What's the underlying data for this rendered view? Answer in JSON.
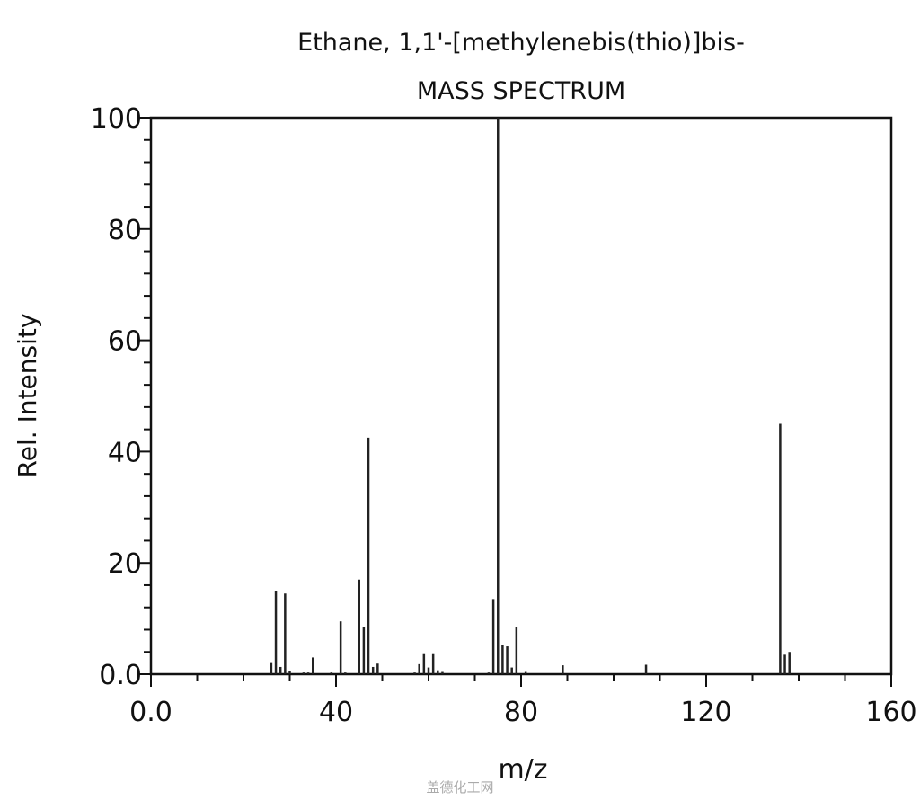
{
  "chart_data": {
    "type": "bar",
    "title": "Ethane, 1,1'-[methylenebis(thio)]bis-",
    "subtitle": "MASS SPECTRUM",
    "xlabel": "m/z",
    "ylabel": "Rel. Intensity",
    "xlim": [
      0,
      160
    ],
    "ylim": [
      0,
      100
    ],
    "xticks": [
      0,
      40,
      80,
      120,
      160
    ],
    "xtick_labels": [
      "0.0",
      "40",
      "80",
      "120",
      "160"
    ],
    "yticks": [
      0,
      20,
      40,
      60,
      80,
      100
    ],
    "ytick_labels": [
      "0.0",
      "20",
      "40",
      "60",
      "80",
      "100"
    ],
    "grid": false,
    "peaks": [
      {
        "mz": 26,
        "i": 2.0
      },
      {
        "mz": 27,
        "i": 15
      },
      {
        "mz": 28,
        "i": 1.3
      },
      {
        "mz": 29,
        "i": 14.5
      },
      {
        "mz": 30,
        "i": 0.5
      },
      {
        "mz": 33,
        "i": 0.3
      },
      {
        "mz": 34,
        "i": 0.3
      },
      {
        "mz": 35,
        "i": 3
      },
      {
        "mz": 39,
        "i": 0.3
      },
      {
        "mz": 41,
        "i": 9.5
      },
      {
        "mz": 42,
        "i": 0.3
      },
      {
        "mz": 45,
        "i": 17
      },
      {
        "mz": 46,
        "i": 8.5
      },
      {
        "mz": 47,
        "i": 42.5
      },
      {
        "mz": 48,
        "i": 1.3
      },
      {
        "mz": 49,
        "i": 1.9
      },
      {
        "mz": 57,
        "i": 0.3
      },
      {
        "mz": 58,
        "i": 1.8
      },
      {
        "mz": 59,
        "i": 3.6
      },
      {
        "mz": 60,
        "i": 1.2
      },
      {
        "mz": 61,
        "i": 3.6
      },
      {
        "mz": 62,
        "i": 0.7
      },
      {
        "mz": 63,
        "i": 0.4
      },
      {
        "mz": 73,
        "i": 0.3
      },
      {
        "mz": 74,
        "i": 13.5
      },
      {
        "mz": 75,
        "i": 100
      },
      {
        "mz": 76,
        "i": 5.2
      },
      {
        "mz": 77,
        "i": 5
      },
      {
        "mz": 78,
        "i": 1.2
      },
      {
        "mz": 79,
        "i": 8.5
      },
      {
        "mz": 81,
        "i": 0.4
      },
      {
        "mz": 89,
        "i": 1.6
      },
      {
        "mz": 107,
        "i": 1.7
      },
      {
        "mz": 136,
        "i": 45
      },
      {
        "mz": 137,
        "i": 3.5
      },
      {
        "mz": 138,
        "i": 4
      }
    ]
  },
  "watermark": "盖德化工网"
}
